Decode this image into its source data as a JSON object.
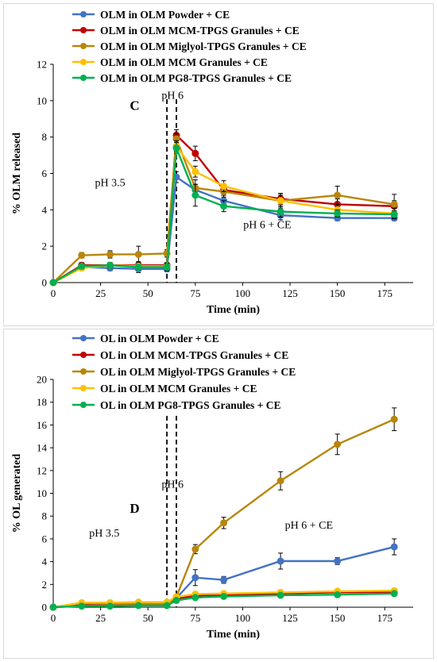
{
  "chart_data": [
    {
      "type": "line",
      "panel": "C",
      "xlabel": "Time (min)",
      "ylabel": "% OLM released",
      "xlim": [
        0,
        190
      ],
      "ylim": [
        0,
        12
      ],
      "xticks": [
        0,
        25,
        50,
        75,
        100,
        125,
        150,
        175
      ],
      "yticks": [
        0,
        2,
        4,
        6,
        8,
        10,
        12
      ],
      "legend_position": "top-left",
      "vlines": [
        60,
        65
      ],
      "annotations": [
        {
          "text": "C",
          "x": 43,
          "y": 9.5,
          "style": "letter"
        },
        {
          "text": "pH 6",
          "x": 63,
          "y": 10.1,
          "style": "normal"
        },
        {
          "text": "pH 3.5",
          "x": 30,
          "y": 5.3,
          "style": "normal"
        },
        {
          "text": "pH 6 + CE",
          "x": 113,
          "y": 3.0,
          "style": "normal"
        }
      ],
      "x": [
        0,
        15,
        30,
        45,
        60,
        65,
        75,
        90,
        120,
        150,
        180
      ],
      "series": [
        {
          "name": "OLM in OLM Powder + CE",
          "color": "#4472C4",
          "values": [
            0,
            0.85,
            0.8,
            0.75,
            0.75,
            5.8,
            5.1,
            4.5,
            3.7,
            3.55,
            3.55
          ],
          "errors": [
            0,
            0.15,
            0.15,
            0.2,
            0.15,
            0.3,
            0.3,
            0.3,
            0.25,
            0.15,
            0.15
          ]
        },
        {
          "name": "OLM in OLM MCM-TPGS Granules + CE",
          "color": "#C00000",
          "values": [
            0,
            0.95,
            0.95,
            0.95,
            0.95,
            8.1,
            7.1,
            5.1,
            4.6,
            4.3,
            4.2
          ],
          "errors": [
            0,
            0.15,
            0.15,
            0.2,
            0.15,
            0.3,
            0.4,
            0.3,
            0.3,
            0.3,
            0.3
          ]
        },
        {
          "name": "OLM in OLM Miglyol-TPGS Granules + CE",
          "color": "#B8860B",
          "values": [
            0,
            1.5,
            1.55,
            1.55,
            1.6,
            7.9,
            5.2,
            5.0,
            4.5,
            4.8,
            4.3
          ],
          "errors": [
            0,
            0.15,
            0.2,
            0.45,
            0.2,
            0.3,
            0.45,
            0.3,
            0.4,
            0.5,
            0.55
          ]
        },
        {
          "name": "OLM in OLM MCM Granules + CE",
          "color": "#FFC000",
          "values": [
            0,
            0.8,
            0.95,
            0.9,
            0.9,
            7.5,
            6.1,
            5.3,
            4.5,
            4.0,
            3.8
          ],
          "errors": [
            0,
            0.1,
            0.15,
            0.15,
            0.15,
            0.3,
            0.3,
            0.3,
            0.3,
            0.3,
            0.3
          ]
        },
        {
          "name": "OLM in OLM PG8-TPGS Granules + CE",
          "color": "#00B050",
          "values": [
            0,
            0.9,
            0.95,
            0.85,
            0.85,
            7.4,
            4.8,
            4.2,
            3.9,
            3.8,
            3.75
          ],
          "errors": [
            0,
            0.15,
            0.15,
            0.15,
            0.2,
            0.3,
            0.6,
            0.3,
            0.3,
            0.2,
            0.2
          ]
        }
      ]
    },
    {
      "type": "line",
      "panel": "D",
      "xlabel": "Time (min)",
      "ylabel": "% OL generated",
      "xlim": [
        0,
        190
      ],
      "ylim": [
        0,
        20
      ],
      "xticks": [
        0,
        25,
        50,
        75,
        100,
        125,
        150,
        175
      ],
      "yticks": [
        0,
        2,
        4,
        6,
        8,
        10,
        12,
        14,
        16,
        18,
        20
      ],
      "legend_position": "top-left",
      "vlines": [
        60,
        65
      ],
      "annotations": [
        {
          "text": "D",
          "x": 43,
          "y": 8.3,
          "style": "letter"
        },
        {
          "text": "pH 6",
          "x": 63,
          "y": 10.5,
          "style": "normal"
        },
        {
          "text": "pH 3.5",
          "x": 27,
          "y": 6.2,
          "style": "normal"
        },
        {
          "text": "pH 6 + CE",
          "x": 135,
          "y": 6.9,
          "style": "normal"
        }
      ],
      "x": [
        0,
        15,
        30,
        45,
        60,
        65,
        75,
        90,
        120,
        150,
        180
      ],
      "series": [
        {
          "name": "OL in OLM Powder + CE",
          "color": "#4472C4",
          "values": [
            0,
            0.15,
            0.15,
            0.2,
            0.2,
            0.8,
            2.6,
            2.4,
            4.05,
            4.05,
            5.3
          ],
          "errors": [
            0,
            0.05,
            0.05,
            0.05,
            0.05,
            0.2,
            0.7,
            0.3,
            0.7,
            0.3,
            0.7
          ]
        },
        {
          "name": "OL in OLM MCM-TPGS Granules + CE",
          "color": "#C00000",
          "values": [
            0,
            0.3,
            0.3,
            0.3,
            0.3,
            0.75,
            1.0,
            1.1,
            1.2,
            1.3,
            1.35
          ],
          "errors": [
            0,
            0.05,
            0.05,
            0.05,
            0.05,
            0.1,
            0.1,
            0.1,
            0.1,
            0.1,
            0.1
          ]
        },
        {
          "name": "OL in OLM Miglyol-TPGS Granules + CE",
          "color": "#B8860B",
          "values": [
            0,
            0.35,
            0.3,
            0.3,
            0.3,
            0.9,
            5.1,
            7.4,
            11.1,
            14.3,
            16.5
          ],
          "errors": [
            0,
            0.05,
            0.05,
            0.05,
            0.05,
            0.2,
            0.4,
            0.5,
            0.8,
            0.9,
            1.0
          ]
        },
        {
          "name": "OL in OLM MCM Granules + CE",
          "color": "#FFC000",
          "values": [
            0,
            0.4,
            0.4,
            0.45,
            0.45,
            0.9,
            1.15,
            1.2,
            1.3,
            1.4,
            1.45
          ],
          "errors": [
            0,
            0.05,
            0.05,
            0.05,
            0.05,
            0.1,
            0.1,
            0.1,
            0.1,
            0.1,
            0.1
          ]
        },
        {
          "name": "OL in OLM PG8-TPGS Granules + CE",
          "color": "#00B050",
          "values": [
            0,
            0.1,
            0.1,
            0.15,
            0.15,
            0.6,
            0.85,
            0.95,
            1.05,
            1.1,
            1.2
          ],
          "errors": [
            0,
            0.05,
            0.05,
            0.05,
            0.05,
            0.1,
            0.1,
            0.1,
            0.1,
            0.1,
            0.1
          ]
        }
      ]
    }
  ]
}
